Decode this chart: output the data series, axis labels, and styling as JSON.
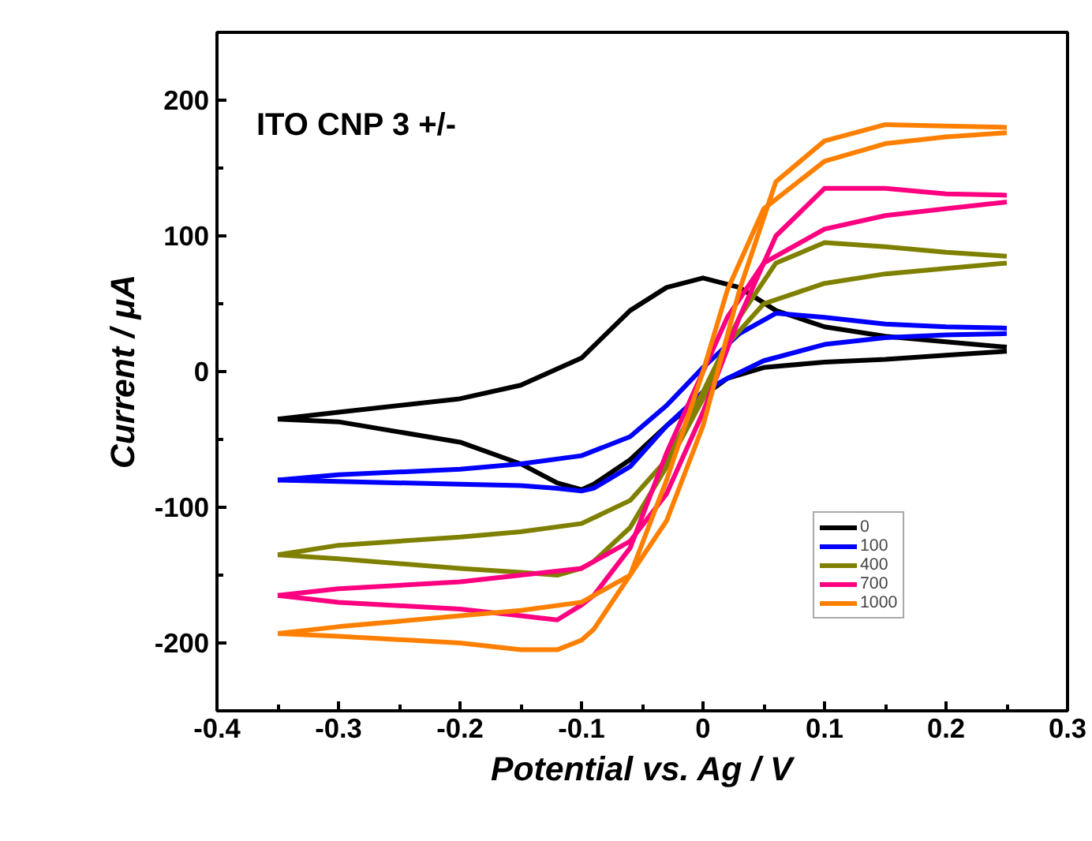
{
  "chart_data": {
    "type": "line",
    "xlabel": "Potential vs. Ag / V",
    "ylabel": "Current / μA",
    "annotations": [
      "ITO CNP 3 +/-"
    ],
    "xlim": [
      -0.4,
      0.3
    ],
    "ylim": [
      -250,
      250
    ],
    "xticks": [
      -0.4,
      -0.3,
      -0.2,
      -0.1,
      0,
      0.1,
      0.2,
      0.3,
      {
        "value": -0.35,
        "label": null
      },
      {
        "value": -0.25,
        "label": null
      },
      {
        "value": -0.15,
        "label": null
      },
      {
        "value": -0.05,
        "label": null
      },
      {
        "value": 0.05,
        "label": null
      },
      {
        "value": 0.15,
        "label": null
      },
      {
        "value": 0.25,
        "label": null
      }
    ],
    "yticks": [
      -200,
      -100,
      0,
      100,
      200,
      {
        "value": -150,
        "label": null
      },
      {
        "value": -50,
        "label": null
      },
      {
        "value": 50,
        "label": null
      },
      {
        "value": 150,
        "label": null
      }
    ],
    "grid": false,
    "legend": "bottom right",
    "line_style": "solid",
    "marker": "none",
    "series": [
      {
        "name": "0",
        "color": "#000000",
        "x": [
          -0.35,
          -0.3,
          -0.2,
          -0.15,
          -0.1,
          -0.06,
          -0.03,
          0,
          0.03,
          0.06,
          0.1,
          0.15,
          0.2,
          0.25
        ],
        "values": [
          -35,
          -30,
          -20,
          -10,
          10,
          45,
          62,
          69,
          62,
          45,
          33,
          26,
          22,
          18
        ]
      },
      {
        "color": "#000000",
        "x": [
          0.25,
          0.2,
          0.15,
          0.1,
          0.05,
          0.02,
          0,
          -0.03,
          -0.06,
          -0.09,
          -0.1,
          -0.12,
          -0.15,
          -0.2,
          -0.3,
          -0.35
        ],
        "values": [
          15,
          12,
          9,
          7,
          3,
          -5,
          -18,
          -40,
          -65,
          -83,
          -87,
          -82,
          -68,
          -52,
          -37,
          -35
        ]
      },
      {
        "name": "100",
        "color": "#0000ff",
        "x": [
          -0.35,
          -0.3,
          -0.2,
          -0.15,
          -0.1,
          -0.06,
          -0.03,
          0,
          0.03,
          0.06,
          0.1,
          0.15,
          0.2,
          0.25
        ],
        "values": [
          -80,
          -76,
          -72,
          -68,
          -62,
          -48,
          -25,
          3,
          28,
          43,
          40,
          35,
          33,
          32
        ]
      },
      {
        "color": "#0000ff",
        "x": [
          0.25,
          0.2,
          0.15,
          0.1,
          0.05,
          0.02,
          0,
          -0.03,
          -0.06,
          -0.09,
          -0.1,
          -0.12,
          -0.15,
          -0.2,
          -0.3,
          -0.35
        ],
        "values": [
          28,
          27,
          25,
          20,
          8,
          -5,
          -15,
          -40,
          -70,
          -86,
          -88,
          -86,
          -84,
          -83,
          -81,
          -80
        ]
      },
      {
        "name": "400",
        "color": "#808000",
        "x": [
          -0.35,
          -0.3,
          -0.2,
          -0.15,
          -0.1,
          -0.06,
          -0.03,
          0,
          0.03,
          0.06,
          0.1,
          0.15,
          0.2,
          0.25
        ],
        "values": [
          -135,
          -128,
          -122,
          -118,
          -112,
          -95,
          -65,
          -15,
          40,
          80,
          95,
          92,
          88,
          85
        ]
      },
      {
        "color": "#808000",
        "x": [
          0.25,
          0.2,
          0.15,
          0.1,
          0.05,
          0.02,
          0,
          -0.03,
          -0.06,
          -0.09,
          -0.1,
          -0.12,
          -0.15,
          -0.2,
          -0.3,
          -0.35
        ],
        "values": [
          80,
          76,
          72,
          65,
          50,
          20,
          -20,
          -70,
          -115,
          -140,
          -145,
          -150,
          -148,
          -145,
          -138,
          -135
        ]
      },
      {
        "name": "700",
        "color": "#ff0080",
        "x": [
          -0.35,
          -0.3,
          -0.2,
          -0.15,
          -0.1,
          -0.06,
          -0.03,
          0,
          0.03,
          0.06,
          0.1,
          0.15,
          0.2,
          0.25
        ],
        "values": [
          -165,
          -160,
          -155,
          -150,
          -145,
          -125,
          -90,
          -30,
          40,
          100,
          135,
          135,
          131,
          130
        ]
      },
      {
        "color": "#ff0080",
        "x": [
          0.25,
          0.2,
          0.15,
          0.1,
          0.05,
          0.02,
          0,
          -0.03,
          -0.06,
          -0.09,
          -0.1,
          -0.12,
          -0.15,
          -0.2,
          -0.3,
          -0.35
        ],
        "values": [
          125,
          120,
          115,
          105,
          80,
          40,
          0,
          -60,
          -130,
          -165,
          -172,
          -183,
          -180,
          -175,
          -170,
          -165
        ]
      },
      {
        "name": "1000",
        "color": "#ff8000",
        "x": [
          -0.35,
          -0.3,
          -0.2,
          -0.15,
          -0.1,
          -0.06,
          -0.03,
          0,
          0.03,
          0.06,
          0.1,
          0.15,
          0.2,
          0.25
        ],
        "values": [
          -193,
          -188,
          -180,
          -176,
          -170,
          -150,
          -110,
          -40,
          60,
          140,
          170,
          182,
          181,
          180
        ]
      },
      {
        "color": "#ff8000",
        "x": [
          0.25,
          0.2,
          0.15,
          0.1,
          0.05,
          0.02,
          0,
          -0.03,
          -0.06,
          -0.09,
          -0.1,
          -0.12,
          -0.15,
          -0.2,
          -0.3,
          -0.35
        ],
        "values": [
          176,
          173,
          168,
          155,
          120,
          60,
          0,
          -80,
          -150,
          -190,
          -198,
          -205,
          -205,
          -200,
          -195,
          -193
        ]
      }
    ]
  }
}
